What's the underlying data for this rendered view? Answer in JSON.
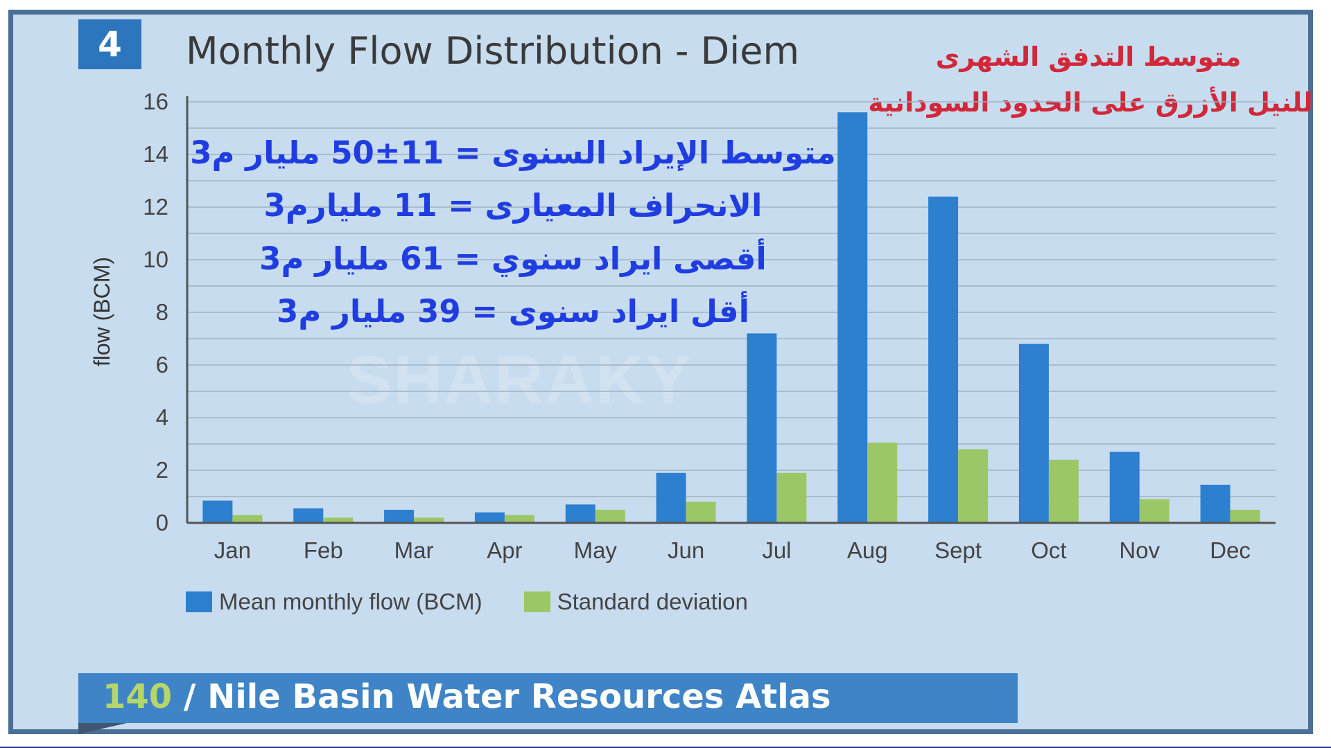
{
  "figure_number": "4",
  "colors": {
    "background": "#c8dcef",
    "mean": "#2d7fcf",
    "std": "#9cc766",
    "title_red": "#d1283a",
    "annotation_blue": "#1f3de0"
  },
  "arabic_title": {
    "line1": "متوسط التدفق الشهرى",
    "line2": "للنيل الأزرق على الحدود السودانية"
  },
  "annotations": [
    "متوسط الإيراد السنوى =  11±50 مليار م3",
    "الانحراف المعيارى = 11 مليارم3",
    "أقصى ايراد سنوي = 61 مليار م3",
    "أقل ايراد سنوى = 39 مليار م3"
  ],
  "watermark": "SHARAKY",
  "footer": {
    "page_number": "140",
    "separator": "/",
    "title": "Nile Basin Water Resources Atlas"
  },
  "chart_data": {
    "type": "bar",
    "title": "Monthly Flow Distribution - Diem",
    "xlabel": "",
    "ylabel": "flow (BCM)",
    "ylim": [
      0,
      16
    ],
    "yticks": [
      "0",
      "2",
      "4",
      "6",
      "8",
      "10",
      "12",
      "14",
      "16"
    ],
    "grid": true,
    "legend_position": "bottom-left",
    "categories": [
      "Jan",
      "Feb",
      "Mar",
      "Apr",
      "May",
      "Jun",
      "Jul",
      "Aug",
      "Sept",
      "Oct",
      "Nov",
      "Dec"
    ],
    "series": [
      {
        "name": "Mean monthly flow (BCM)",
        "color": "#2d7fcf",
        "values": [
          0.85,
          0.55,
          0.5,
          0.4,
          0.7,
          1.9,
          7.2,
          15.6,
          12.4,
          6.8,
          2.7,
          1.45
        ]
      },
      {
        "name": "Standard deviation",
        "color": "#9cc766",
        "values": [
          0.3,
          0.2,
          0.2,
          0.3,
          0.5,
          0.8,
          1.9,
          3.05,
          2.8,
          2.4,
          0.9,
          0.5
        ]
      }
    ]
  }
}
